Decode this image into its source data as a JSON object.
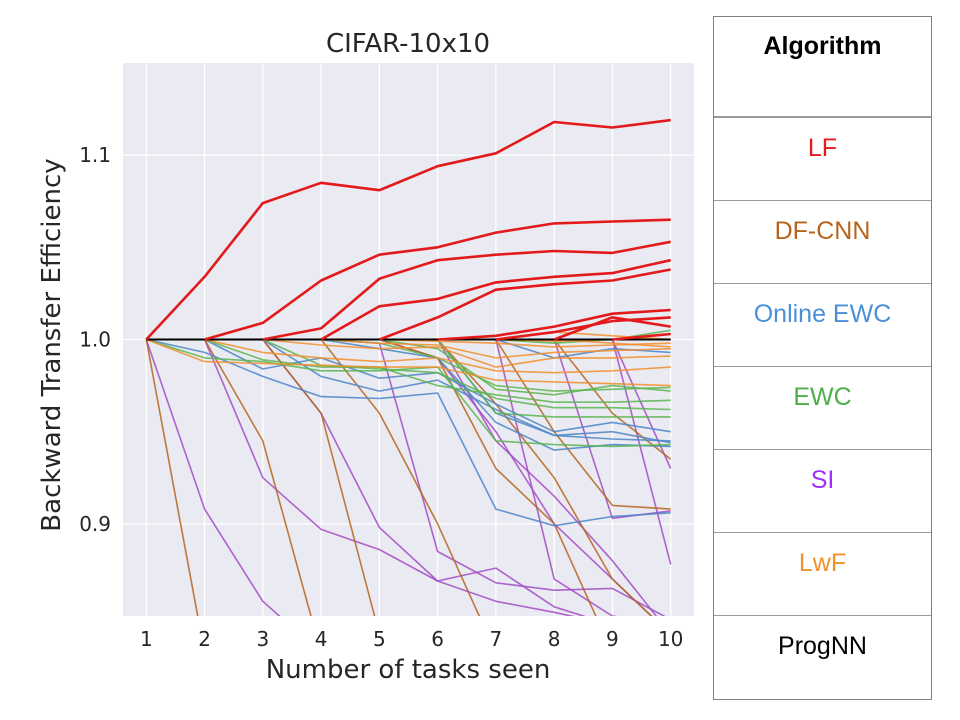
{
  "legend": {
    "header": "Algorithm",
    "entries": [
      {
        "label": "LF",
        "color": "#e41a1c"
      },
      {
        "label": "DF-CNN",
        "color": "#b5651d"
      },
      {
        "label": "Online EWC",
        "color": "#4a90d9"
      },
      {
        "label": "EWC",
        "color": "#4daf4a"
      },
      {
        "label": "SI",
        "color": "#9b30ff"
      },
      {
        "label": "LwF",
        "color": "#f0912b"
      },
      {
        "label": "ProgNN",
        "color": "#000000"
      }
    ]
  },
  "chart_data": {
    "type": "line",
    "title": "CIFAR-10x10",
    "xlabel": "Number of tasks seen",
    "ylabel": "Backward Transfer Efficiency",
    "xlim": [
      0.6,
      10.4
    ],
    "ylim": [
      0.85,
      1.15
    ],
    "xticks": [
      1,
      2,
      3,
      4,
      5,
      6,
      7,
      8,
      9,
      10
    ],
    "yticks": [
      0.9,
      1.0,
      1.1
    ],
    "ytick_labels": [
      "0.9",
      "1.0",
      "1.1"
    ],
    "grid": true,
    "background": "#eaeaf2",
    "series_colors": {
      "LF": "#e31a1c",
      "DF-CNN": "#b5651d",
      "Online EWC": "#4a86c8",
      "EWC": "#59b54e",
      "SI": "#a24bc4",
      "LwF": "#f28e2b",
      "ProgNN": "#000000"
    },
    "series": [
      {
        "group": "ProgNN",
        "x": [
          1,
          2,
          3,
          4,
          5,
          6,
          7,
          8,
          9,
          10
        ],
        "values": [
          1.0,
          1.0,
          1.0,
          1.0,
          1.0,
          1.0,
          1.0,
          1.0,
          1.0,
          1.0
        ]
      },
      {
        "group": "SI",
        "x": [
          1,
          2,
          3,
          4
        ],
        "values": [
          1.0,
          0.908,
          0.858,
          0.83
        ]
      },
      {
        "group": "SI",
        "x": [
          2,
          3,
          4,
          5,
          6,
          7,
          8,
          9,
          10
        ],
        "values": [
          1.0,
          0.925,
          0.897,
          0.886,
          0.869,
          0.876,
          0.855,
          0.845,
          0.84
        ]
      },
      {
        "group": "SI",
        "x": [
          3,
          4,
          5,
          6,
          7,
          8,
          9,
          10
        ],
        "values": [
          1.0,
          0.96,
          0.898,
          0.869,
          0.858,
          0.852,
          0.845,
          0.84
        ]
      },
      {
        "group": "SI",
        "x": [
          4,
          5,
          6,
          7,
          8,
          9,
          10
        ],
        "values": [
          1.0,
          0.998,
          0.885,
          0.868,
          0.864,
          0.865,
          0.848
        ]
      },
      {
        "group": "SI",
        "x": [
          5,
          6,
          7,
          8,
          9,
          10
        ],
        "values": [
          1.0,
          0.99,
          0.95,
          0.9,
          0.87,
          0.84
        ]
      },
      {
        "group": "SI",
        "x": [
          6,
          7,
          8,
          9,
          10
        ],
        "values": [
          1.0,
          0.945,
          0.915,
          0.88,
          0.84
        ]
      },
      {
        "group": "SI",
        "x": [
          7,
          8,
          9,
          10
        ],
        "values": [
          1.0,
          0.87,
          0.85,
          0.845
        ]
      },
      {
        "group": "SI",
        "x": [
          8,
          9,
          10
        ],
        "values": [
          1.0,
          0.903,
          0.907
        ]
      },
      {
        "group": "SI",
        "x": [
          9,
          10
        ],
        "values": [
          1.0,
          0.878
        ]
      },
      {
        "group": "SI",
        "x": [
          9,
          10
        ],
        "values": [
          1.0,
          0.93
        ]
      },
      {
        "group": "DF-CNN",
        "x": [
          1,
          2
        ],
        "values": [
          1.0,
          0.83
        ]
      },
      {
        "group": "DF-CNN",
        "x": [
          2,
          3,
          4
        ],
        "values": [
          1.0,
          0.945,
          0.83
        ]
      },
      {
        "group": "DF-CNN",
        "x": [
          3,
          4,
          5
        ],
        "values": [
          1.0,
          0.96,
          0.84
        ]
      },
      {
        "group": "DF-CNN",
        "x": [
          4,
          5,
          6,
          7
        ],
        "values": [
          1.0,
          0.96,
          0.9,
          0.83
        ]
      },
      {
        "group": "DF-CNN",
        "x": [
          5,
          6,
          7,
          8,
          9
        ],
        "values": [
          1.0,
          0.99,
          0.93,
          0.9,
          0.83
        ]
      },
      {
        "group": "DF-CNN",
        "x": [
          6,
          7,
          8,
          9,
          10
        ],
        "values": [
          1.0,
          0.965,
          0.925,
          0.87,
          0.84
        ]
      },
      {
        "group": "DF-CNN",
        "x": [
          7,
          8,
          9,
          10
        ],
        "values": [
          1.0,
          0.95,
          0.91,
          0.908
        ]
      },
      {
        "group": "DF-CNN",
        "x": [
          8,
          9,
          10
        ],
        "values": [
          1.0,
          0.96,
          0.935
        ]
      },
      {
        "group": "Online EWC",
        "x": [
          1,
          2,
          3,
          4,
          5,
          6,
          7,
          8,
          9,
          10
        ],
        "values": [
          1.0,
          0.993,
          0.98,
          0.969,
          0.968,
          0.971,
          0.908,
          0.899,
          0.904,
          0.906
        ]
      },
      {
        "group": "Online EWC",
        "x": [
          2,
          3,
          4,
          5,
          6,
          7,
          8,
          9,
          10
        ],
        "values": [
          1.0,
          0.984,
          0.99,
          0.979,
          0.982,
          0.965,
          0.95,
          0.955,
          0.95
        ]
      },
      {
        "group": "Online EWC",
        "x": [
          3,
          4,
          5,
          6,
          7,
          8,
          9,
          10
        ],
        "values": [
          1.0,
          0.98,
          0.972,
          0.978,
          0.962,
          0.948,
          0.946,
          0.945
        ]
      },
      {
        "group": "Online EWC",
        "x": [
          4,
          5,
          6,
          7,
          8,
          9,
          10
        ],
        "values": [
          1.0,
          0.995,
          0.99,
          0.955,
          0.94,
          0.943,
          0.942
        ]
      },
      {
        "group": "Online EWC",
        "x": [
          6,
          7,
          8,
          9,
          10
        ],
        "values": [
          1.0,
          0.96,
          0.948,
          0.95,
          0.944
        ]
      },
      {
        "group": "Online EWC",
        "x": [
          7,
          8,
          9,
          10
        ],
        "values": [
          1.0,
          0.99,
          0.995,
          0.993
        ]
      },
      {
        "group": "EWC",
        "x": [
          1,
          2,
          3,
          4,
          5,
          6,
          7,
          8,
          9,
          10
        ],
        "values": [
          1.0,
          0.99,
          0.988,
          0.983,
          0.983,
          0.985,
          0.945,
          0.943,
          0.942,
          0.943
        ]
      },
      {
        "group": "EWC",
        "x": [
          2,
          3,
          4,
          5,
          6,
          7,
          8,
          9,
          10
        ],
        "values": [
          1.0,
          0.989,
          0.985,
          0.985,
          0.975,
          0.97,
          0.966,
          0.966,
          0.967
        ]
      },
      {
        "group": "EWC",
        "x": [
          3,
          4,
          5,
          6,
          7,
          8,
          9,
          10
        ],
        "values": [
          1.0,
          0.986,
          0.984,
          0.982,
          0.968,
          0.963,
          0.963,
          0.962
        ]
      },
      {
        "group": "EWC",
        "x": [
          4,
          5,
          6,
          7,
          8,
          9,
          10
        ],
        "values": [
          1.0,
          0.998,
          0.99,
          0.975,
          0.972,
          0.973,
          0.974
        ]
      },
      {
        "group": "EWC",
        "x": [
          5,
          6,
          7,
          8,
          9,
          10
        ],
        "values": [
          1.0,
          0.995,
          0.973,
          0.97,
          0.975,
          0.972
        ]
      },
      {
        "group": "EWC",
        "x": [
          6,
          7,
          8,
          9,
          10
        ],
        "values": [
          1.0,
          0.96,
          0.958,
          0.958,
          0.958
        ]
      },
      {
        "group": "EWC",
        "x": [
          7,
          8,
          9,
          10
        ],
        "values": [
          1.0,
          0.998,
          1.0,
          1.003
        ]
      },
      {
        "group": "EWC",
        "x": [
          8,
          9,
          10
        ],
        "values": [
          1.0,
          1.0,
          1.005
        ]
      },
      {
        "group": "LwF",
        "x": [
          1,
          2,
          3,
          4,
          5,
          6,
          7,
          8,
          9,
          10
        ],
        "values": [
          1.0,
          0.988,
          0.987,
          0.986,
          0.985,
          0.985,
          0.978,
          0.977,
          0.976,
          0.975
        ]
      },
      {
        "group": "LwF",
        "x": [
          2,
          3,
          4,
          5,
          6,
          7,
          8,
          9,
          10
        ],
        "values": [
          1.0,
          0.993,
          0.99,
          0.988,
          0.99,
          0.983,
          0.982,
          0.983,
          0.985
        ]
      },
      {
        "group": "LwF",
        "x": [
          3,
          4,
          5,
          6,
          7,
          8,
          9,
          10
        ],
        "values": [
          1.0,
          0.997,
          0.995,
          0.996,
          0.985,
          0.99,
          0.99,
          0.991
        ]
      },
      {
        "group": "LwF",
        "x": [
          4,
          5,
          6,
          7,
          8,
          9,
          10
        ],
        "values": [
          1.0,
          0.998,
          0.997,
          0.99,
          0.993,
          0.994,
          0.995
        ]
      },
      {
        "group": "LwF",
        "x": [
          5,
          6,
          7,
          8,
          9,
          10
        ],
        "values": [
          1.0,
          0.999,
          0.998,
          0.996,
          0.997,
          0.998
        ]
      },
      {
        "group": "LwF",
        "x": [
          6,
          7,
          8,
          9,
          10
        ],
        "values": [
          1.0,
          1.0,
          0.999,
          1.0,
          1.0
        ]
      },
      {
        "group": "LwF",
        "x": [
          7,
          8,
          9,
          10
        ],
        "values": [
          1.0,
          1.004,
          1.002,
          1.0
        ]
      },
      {
        "group": "LwF",
        "x": [
          8,
          9,
          10
        ],
        "values": [
          1.0,
          0.998,
          0.996
        ]
      },
      {
        "group": "LF",
        "x": [
          1,
          2,
          3,
          4,
          5,
          6,
          7,
          8,
          9,
          10
        ],
        "values": [
          1.0,
          1.034,
          1.074,
          1.085,
          1.081,
          1.094,
          1.101,
          1.118,
          1.115,
          1.119
        ]
      },
      {
        "group": "LF",
        "x": [
          2,
          3,
          4,
          5,
          6,
          7,
          8,
          9,
          10
        ],
        "values": [
          1.0,
          1.009,
          1.032,
          1.046,
          1.05,
          1.058,
          1.063,
          1.064,
          1.065
        ]
      },
      {
        "group": "LF",
        "x": [
          3,
          4,
          5,
          6,
          7,
          8,
          9,
          10
        ],
        "values": [
          1.0,
          1.006,
          1.033,
          1.043,
          1.046,
          1.048,
          1.047,
          1.053
        ]
      },
      {
        "group": "LF",
        "x": [
          4,
          5,
          6,
          7,
          8,
          9,
          10
        ],
        "values": [
          1.0,
          1.018,
          1.022,
          1.031,
          1.034,
          1.036,
          1.043
        ]
      },
      {
        "group": "LF",
        "x": [
          5,
          6,
          7,
          8,
          9,
          10
        ],
        "values": [
          1.0,
          1.012,
          1.027,
          1.03,
          1.032,
          1.038
        ]
      },
      {
        "group": "LF",
        "x": [
          6,
          7,
          8,
          9,
          10
        ],
        "values": [
          1.0,
          1.002,
          1.007,
          1.014,
          1.016
        ]
      },
      {
        "group": "LF",
        "x": [
          7,
          8,
          9,
          10
        ],
        "values": [
          1.0,
          1.004,
          1.01,
          1.012
        ]
      },
      {
        "group": "LF",
        "x": [
          8,
          9,
          10
        ],
        "values": [
          1.0,
          1.012,
          1.007
        ]
      },
      {
        "group": "LF",
        "x": [
          9,
          10
        ],
        "values": [
          1.0,
          1.003
        ]
      }
    ]
  }
}
